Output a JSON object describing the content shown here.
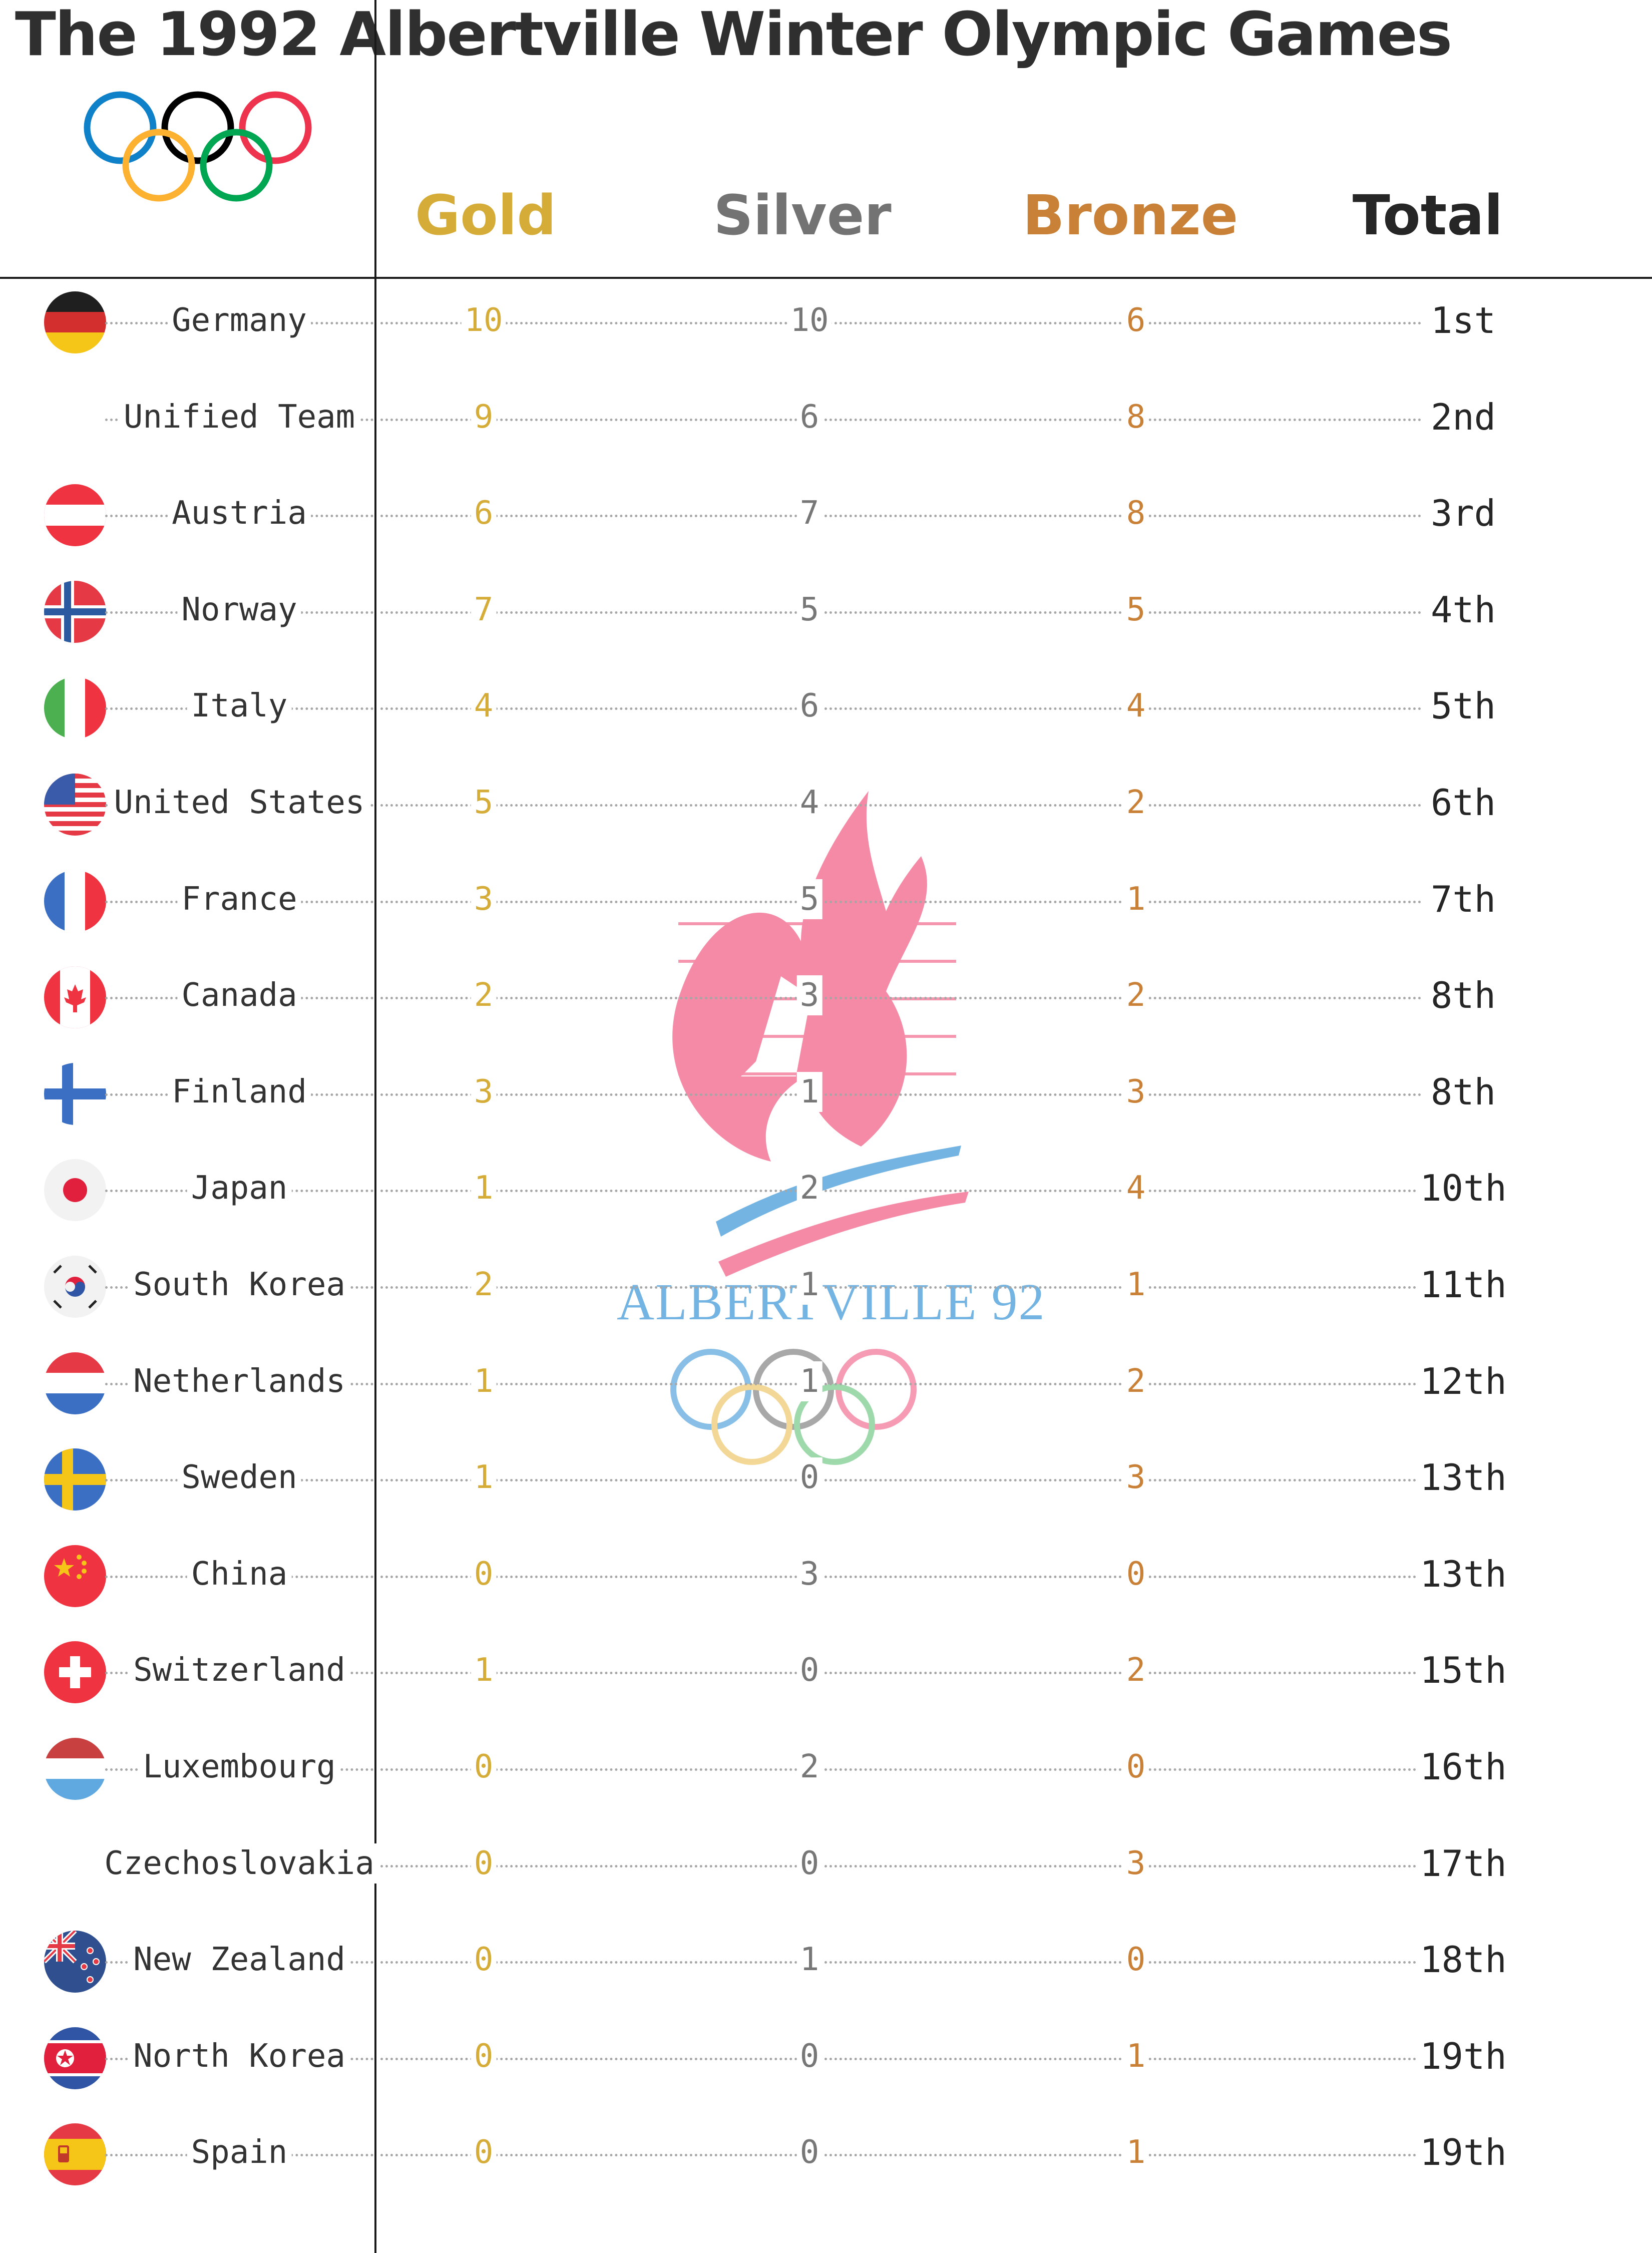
{
  "title": "The 1992 Albertville Winter Olympic Games",
  "headers": {
    "gold": "Gold",
    "silver": "Silver",
    "bronze": "Bronze",
    "total": "Total"
  },
  "logo_text": "ALBERTVILLE 92",
  "colors": {
    "gold": "#d4ac37",
    "silver": "#777777",
    "bronze": "#c98037",
    "total": "#262626",
    "logo_pink": "#f48aa6",
    "logo_blue": "#74b4e2"
  },
  "chart_data": {
    "type": "table",
    "title": "The 1992 Albertville Winter Olympic Games",
    "columns": [
      "Gold",
      "Silver",
      "Bronze",
      "Total"
    ],
    "rows": [
      {
        "country": "Germany",
        "gold": "10",
        "silver": "10",
        "bronze": "6",
        "rank": "1st",
        "flag": "germany-flag"
      },
      {
        "country": "Unified Team",
        "gold": "9",
        "silver": "6",
        "bronze": "8",
        "rank": "2nd",
        "flag": ""
      },
      {
        "country": "Austria",
        "gold": "6",
        "silver": "7",
        "bronze": "8",
        "rank": "3rd",
        "flag": "austria-flag"
      },
      {
        "country": "Norway",
        "gold": "7",
        "silver": "5",
        "bronze": "5",
        "rank": "4th",
        "flag": "norway-flag"
      },
      {
        "country": "Italy",
        "gold": "4",
        "silver": "6",
        "bronze": "4",
        "rank": "5th",
        "flag": "italy-flag"
      },
      {
        "country": "United States",
        "gold": "5",
        "silver": "4",
        "bronze": "2",
        "rank": "6th",
        "flag": "united-states-flag"
      },
      {
        "country": "France",
        "gold": "3",
        "silver": "5",
        "bronze": "1",
        "rank": "7th",
        "flag": "france-flag"
      },
      {
        "country": "Canada",
        "gold": "2",
        "silver": "3",
        "bronze": "2",
        "rank": "8th",
        "flag": "canada-flag"
      },
      {
        "country": "Finland",
        "gold": "3",
        "silver": "1",
        "bronze": "3",
        "rank": "8th",
        "flag": "finland-flag"
      },
      {
        "country": "Japan",
        "gold": "1",
        "silver": "2",
        "bronze": "4",
        "rank": "10th",
        "flag": "japan-flag"
      },
      {
        "country": "South Korea",
        "gold": "2",
        "silver": "1",
        "bronze": "1",
        "rank": "11th",
        "flag": "south-korea-flag"
      },
      {
        "country": "Netherlands",
        "gold": "1",
        "silver": "1",
        "bronze": "2",
        "rank": "12th",
        "flag": "netherlands-flag"
      },
      {
        "country": "Sweden",
        "gold": "1",
        "silver": "0",
        "bronze": "3",
        "rank": "13th",
        "flag": "sweden-flag"
      },
      {
        "country": "China",
        "gold": "0",
        "silver": "3",
        "bronze": "0",
        "rank": "13th",
        "flag": "china-flag"
      },
      {
        "country": "Switzerland",
        "gold": "1",
        "silver": "0",
        "bronze": "2",
        "rank": "15th",
        "flag": "switzerland-flag"
      },
      {
        "country": "Luxembourg",
        "gold": "0",
        "silver": "2",
        "bronze": "0",
        "rank": "16th",
        "flag": "luxembourg-flag"
      },
      {
        "country": "Czechoslovakia",
        "gold": "0",
        "silver": "0",
        "bronze": "3",
        "rank": "17th",
        "flag": ""
      },
      {
        "country": "New Zealand",
        "gold": "0",
        "silver": "1",
        "bronze": "0",
        "rank": "18th",
        "flag": "new-zealand-flag"
      },
      {
        "country": "North Korea",
        "gold": "0",
        "silver": "0",
        "bronze": "1",
        "rank": "19th",
        "flag": "north-korea-flag"
      },
      {
        "country": "Spain",
        "gold": "0",
        "silver": "0",
        "bronze": "1",
        "rank": "19th",
        "flag": "spain-flag"
      }
    ]
  }
}
